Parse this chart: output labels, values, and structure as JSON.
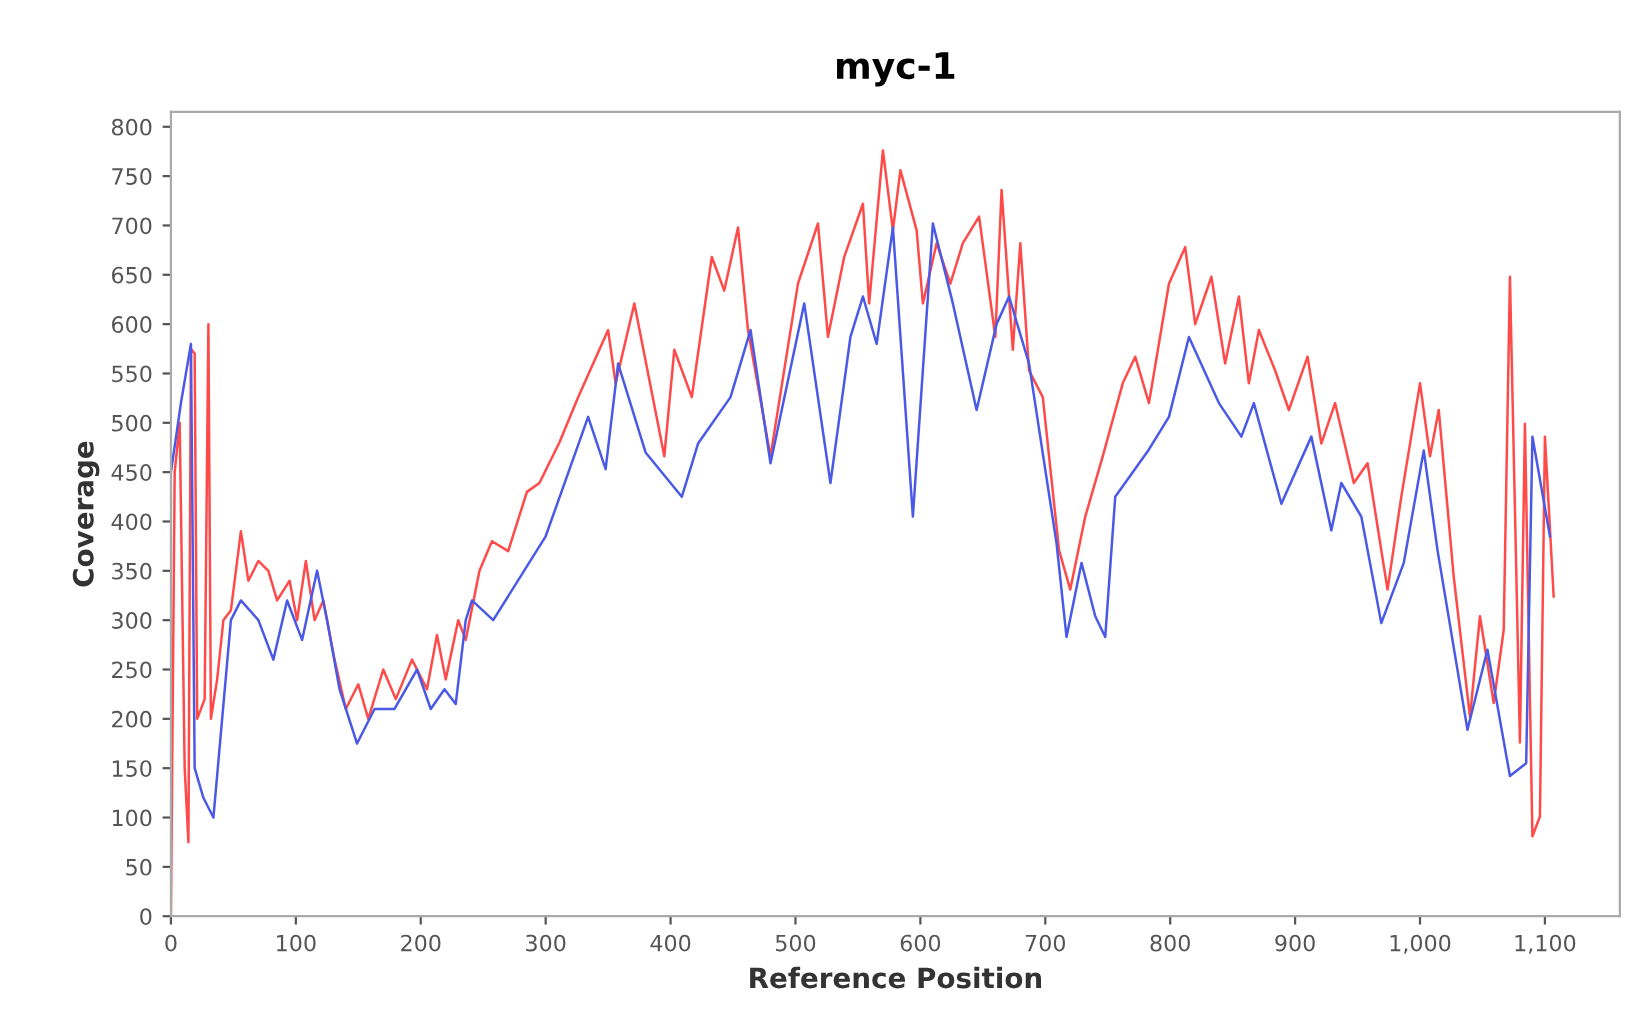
{
  "chart_data": {
    "type": "line",
    "title": "myc-1",
    "xlabel": "Reference Position",
    "ylabel": "Coverage",
    "xlim": [
      0,
      1160
    ],
    "ylim": [
      0,
      815
    ],
    "xticks": [
      0,
      100,
      200,
      300,
      400,
      500,
      600,
      700,
      800,
      900,
      {
        "value": 1000,
        "label": "1,000"
      },
      {
        "value": 1100,
        "label": "1,100"
      }
    ],
    "yticks": [
      0,
      50,
      100,
      150,
      200,
      250,
      300,
      350,
      400,
      450,
      500,
      550,
      600,
      650,
      700,
      750,
      800
    ],
    "grid": false,
    "legend": false,
    "marker": "none",
    "line_style": "solid",
    "series": [
      {
        "color": "#ff4a4a",
        "x": [
          0,
          3,
          7,
          11,
          14,
          16,
          19,
          21,
          27,
          30,
          32,
          37,
          42,
          48,
          56,
          62,
          70,
          78,
          85,
          95,
          101,
          108,
          115,
          122,
          131,
          140,
          150,
          158,
          170,
          180,
          193,
          205,
          213,
          220,
          230,
          236,
          247,
          257,
          270,
          285,
          295,
          311,
          326,
          350,
          356,
          371,
          395,
          403,
          417,
          433,
          443,
          454,
          462,
          480,
          502,
          518,
          526,
          539,
          554,
          559,
          570,
          578,
          584,
          597,
          602,
          613,
          624,
          634,
          647,
          660,
          665,
          674,
          680,
          687,
          698,
          711,
          720,
          732,
          746,
          762,
          772,
          783,
          799,
          812,
          820,
          833,
          844,
          855,
          863,
          871,
          884,
          895,
          910,
          921,
          932,
          947,
          958,
          974,
          985,
          1000,
          1008,
          1015,
          1027,
          1040,
          1048,
          1059,
          1067,
          1072,
          1080,
          1084,
          1090,
          1096,
          1100,
          1107
        ],
        "values": [
          0,
          450,
          500,
          150,
          75,
          575,
          570,
          200,
          220,
          600,
          200,
          240,
          300,
          310,
          390,
          340,
          360,
          350,
          320,
          340,
          300,
          360,
          300,
          320,
          260,
          210,
          235,
          200,
          250,
          220,
          260,
          230,
          285,
          240,
          300,
          280,
          350,
          380,
          370,
          430,
          439,
          480,
          526,
          594,
          540,
          621,
          466,
          574,
          526,
          668,
          634,
          698,
          594,
          466,
          641,
          702,
          587,
          668,
          722,
          621,
          776,
          695,
          756,
          695,
          621,
          682,
          641,
          682,
          709,
          587,
          736,
          574,
          682,
          553,
          526,
          371,
          331,
          405,
          466,
          540,
          567,
          520,
          641,
          678,
          600,
          648,
          560,
          628,
          540,
          594,
          553,
          513,
          567,
          479,
          520,
          439,
          459,
          331,
          425,
          540,
          466,
          513,
          344,
          202,
          304,
          216,
          290,
          648,
          176,
          499,
          81,
          101,
          486,
          324
        ]
      },
      {
        "color": "#4a5ae6",
        "x": [
          0,
          8,
          16,
          19,
          26,
          34,
          41,
          48,
          56,
          70,
          82,
          93,
          105,
          117,
          125,
          135,
          149,
          163,
          179,
          197,
          208,
          219,
          228,
          236,
          241,
          258,
          300,
          334,
          348,
          358,
          380,
          409,
          422,
          448,
          464,
          480,
          507,
          528,
          544,
          554,
          565,
          578,
          594,
          610,
          626,
          645,
          661,
          671,
          687,
          709,
          717,
          729,
          740,
          748,
          756,
          783,
          799,
          815,
          839,
          857,
          867,
          889,
          913,
          929,
          937,
          953,
          969,
          987,
          1003,
          1014,
          1038,
          1054,
          1072,
          1085,
          1090,
          1104
        ],
        "values": [
          450,
          520,
          580,
          150,
          120,
          100,
          200,
          300,
          320,
          300,
          260,
          320,
          280,
          350,
          300,
          230,
          175,
          210,
          210,
          250,
          210,
          230,
          215,
          300,
          320,
          300,
          385,
          506,
          453,
          560,
          470,
          425,
          479,
          526,
          594,
          459,
          621,
          439,
          587,
          628,
          580,
          698,
          405,
          702,
          621,
          513,
          600,
          628,
          560,
          378,
          283,
          358,
          304,
          283,
          425,
          473,
          506,
          587,
          520,
          486,
          520,
          418,
          486,
          391,
          439,
          405,
          297,
          358,
          472,
          371,
          189,
          270,
          142,
          155,
          486,
          385
        ]
      }
    ]
  }
}
